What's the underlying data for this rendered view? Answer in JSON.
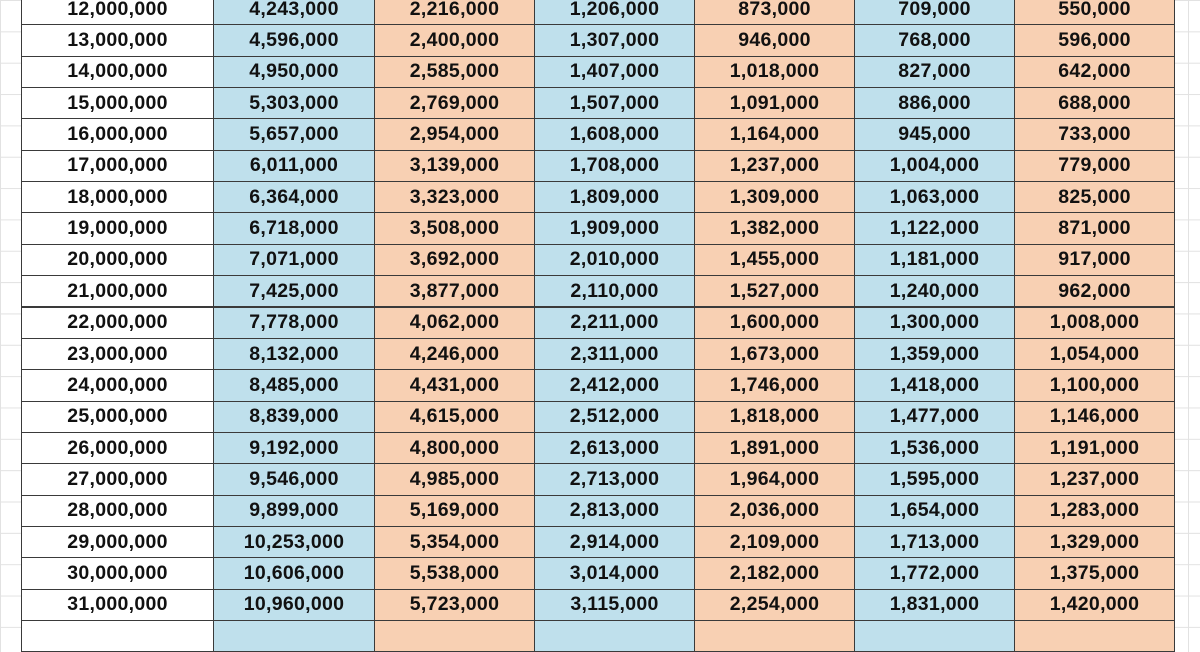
{
  "table": {
    "rows": [
      [
        "12,000,000",
        "4,243,000",
        "2,216,000",
        "1,206,000",
        "873,000",
        "709,000",
        "550,000"
      ],
      [
        "13,000,000",
        "4,596,000",
        "2,400,000",
        "1,307,000",
        "946,000",
        "768,000",
        "596,000"
      ],
      [
        "14,000,000",
        "4,950,000",
        "2,585,000",
        "1,407,000",
        "1,018,000",
        "827,000",
        "642,000"
      ],
      [
        "15,000,000",
        "5,303,000",
        "2,769,000",
        "1,507,000",
        "1,091,000",
        "886,000",
        "688,000"
      ],
      [
        "16,000,000",
        "5,657,000",
        "2,954,000",
        "1,608,000",
        "1,164,000",
        "945,000",
        "733,000"
      ],
      [
        "17,000,000",
        "6,011,000",
        "3,139,000",
        "1,708,000",
        "1,237,000",
        "1,004,000",
        "779,000"
      ],
      [
        "18,000,000",
        "6,364,000",
        "3,323,000",
        "1,809,000",
        "1,309,000",
        "1,063,000",
        "825,000"
      ],
      [
        "19,000,000",
        "6,718,000",
        "3,508,000",
        "1,909,000",
        "1,382,000",
        "1,122,000",
        "871,000"
      ],
      [
        "20,000,000",
        "7,071,000",
        "3,692,000",
        "2,010,000",
        "1,455,000",
        "1,181,000",
        "917,000"
      ],
      [
        "21,000,000",
        "7,425,000",
        "3,877,000",
        "2,110,000",
        "1,527,000",
        "1,240,000",
        "962,000"
      ],
      [
        "22,000,000",
        "7,778,000",
        "4,062,000",
        "2,211,000",
        "1,600,000",
        "1,300,000",
        "1,008,000"
      ],
      [
        "23,000,000",
        "8,132,000",
        "4,246,000",
        "2,311,000",
        "1,673,000",
        "1,359,000",
        "1,054,000"
      ],
      [
        "24,000,000",
        "8,485,000",
        "4,431,000",
        "2,412,000",
        "1,746,000",
        "1,418,000",
        "1,100,000"
      ],
      [
        "25,000,000",
        "8,839,000",
        "4,615,000",
        "2,512,000",
        "1,818,000",
        "1,477,000",
        "1,146,000"
      ],
      [
        "26,000,000",
        "9,192,000",
        "4,800,000",
        "2,613,000",
        "1,891,000",
        "1,536,000",
        "1,191,000"
      ],
      [
        "27,000,000",
        "9,546,000",
        "4,985,000",
        "2,713,000",
        "1,964,000",
        "1,595,000",
        "1,237,000"
      ],
      [
        "28,000,000",
        "9,899,000",
        "5,169,000",
        "2,813,000",
        "2,036,000",
        "1,654,000",
        "1,283,000"
      ],
      [
        "29,000,000",
        "10,253,000",
        "5,354,000",
        "2,914,000",
        "2,109,000",
        "1,713,000",
        "1,329,000"
      ],
      [
        "30,000,000",
        "10,606,000",
        "5,538,000",
        "3,014,000",
        "2,182,000",
        "1,772,000",
        "1,375,000"
      ],
      [
        "31,000,000",
        "10,960,000",
        "5,723,000",
        "3,115,000",
        "2,254,000",
        "1,831,000",
        "1,420,000"
      ]
    ]
  }
}
